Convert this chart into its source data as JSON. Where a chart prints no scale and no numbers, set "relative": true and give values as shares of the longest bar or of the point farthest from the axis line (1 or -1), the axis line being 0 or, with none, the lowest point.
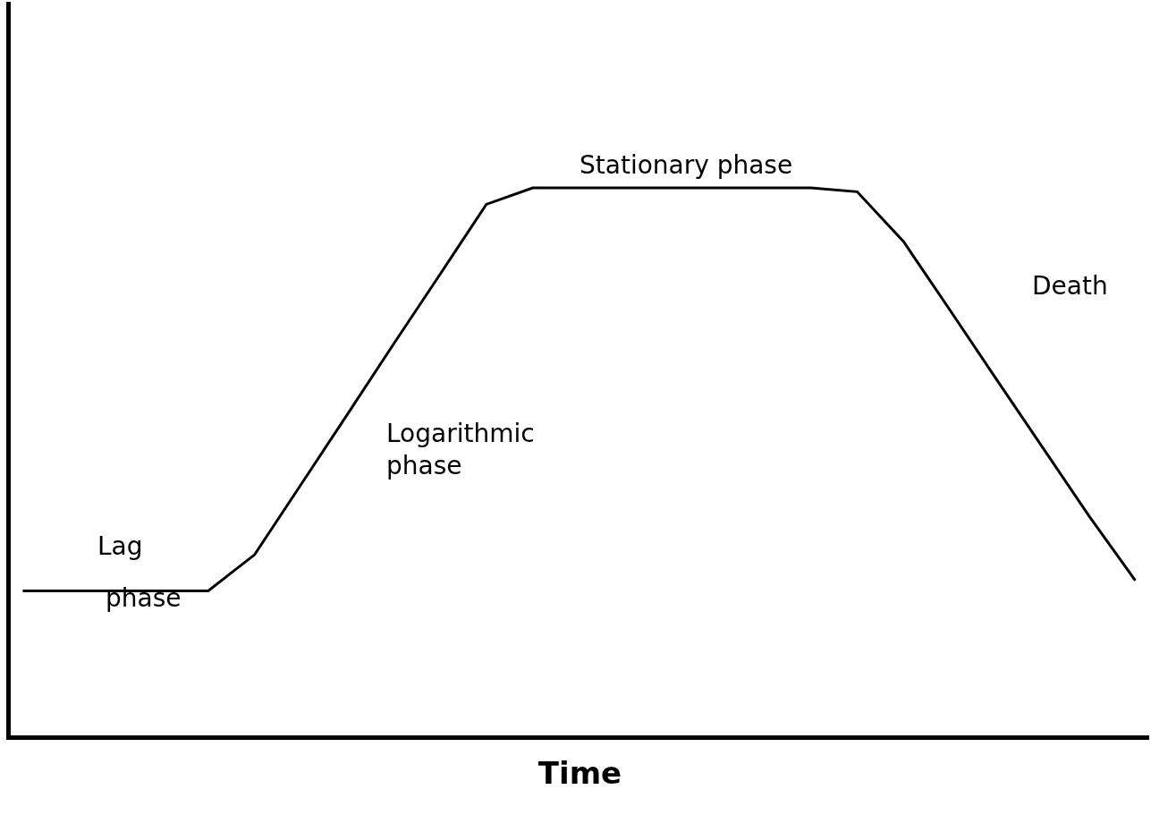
{
  "chart_data": {
    "type": "line",
    "relative": true,
    "xlabel": "Time",
    "categories": [
      null,
      null,
      null,
      null,
      null,
      null,
      null,
      null,
      null,
      null,
      null,
      null,
      null,
      null,
      null,
      null,
      null,
      null,
      null,
      null,
      null,
      null,
      null,
      null,
      null
    ],
    "series": [
      {
        "color": "#000000",
        "values": [
          0.264,
          0.264,
          0.264,
          0.264,
          0.264,
          0.33,
          0.458,
          0.586,
          0.715,
          0.842,
          0.97,
          1,
          1,
          1,
          1,
          1,
          1,
          1,
          0.993,
          0.902,
          0.777,
          0.651,
          0.526,
          0.401,
          0.283
        ]
      }
    ],
    "annotations": [
      "Stationary phase",
      "Death",
      "Logarithmic\nphase",
      "Lag",
      "phase"
    ],
    "legend": false,
    "marker": "none",
    "line_style": "solid"
  }
}
